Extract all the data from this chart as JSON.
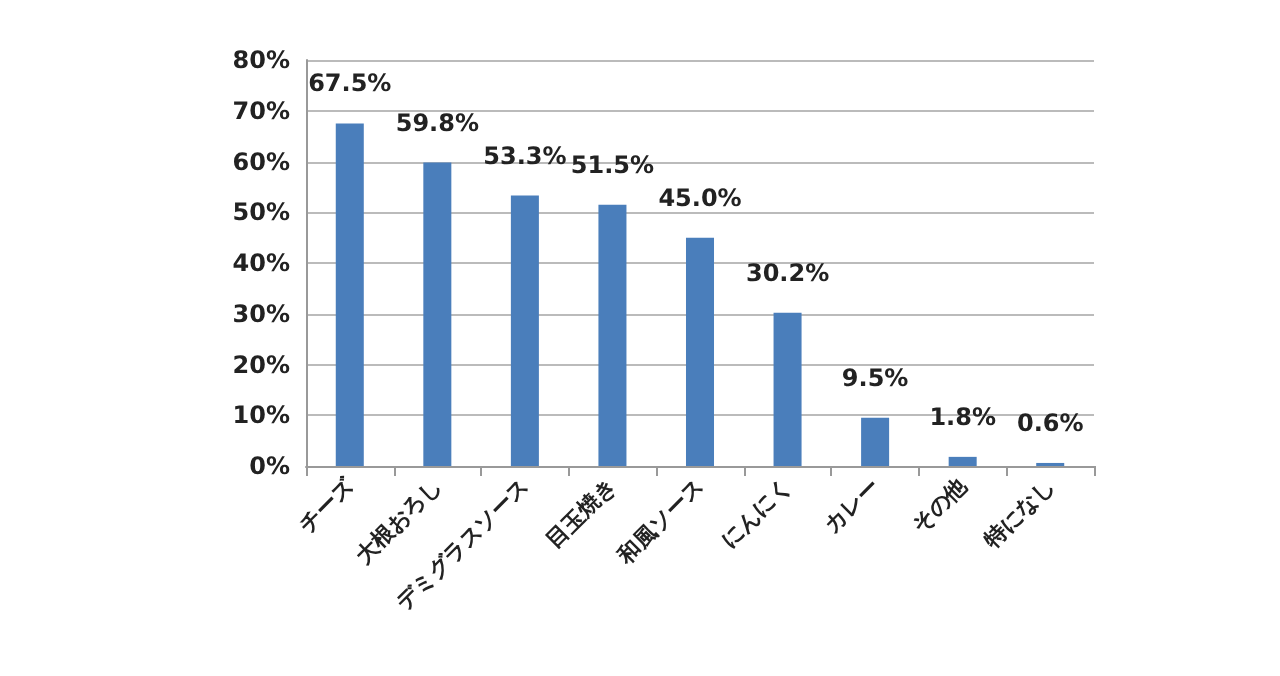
{
  "chart_data": {
    "type": "bar",
    "categories": [
      "チーズ",
      "大根おろし",
      "デミグラスソース",
      "目玉焼き",
      "和風ソース",
      "にんにく",
      "カレー",
      "その他",
      "特になし"
    ],
    "values": [
      67.5,
      59.8,
      53.3,
      51.5,
      45.0,
      30.2,
      9.5,
      1.8,
      0.6
    ],
    "value_labels": [
      "67.5%",
      "59.8%",
      "53.3%",
      "51.5%",
      "45.0%",
      "30.2%",
      "9.5%",
      "1.8%",
      "0.6%"
    ],
    "color": "#4a7ebb",
    "ylim": [
      0,
      80
    ],
    "yticks": [
      {
        "value": 0,
        "label": "0%"
      },
      {
        "value": 10,
        "label": "10%"
      },
      {
        "value": 20,
        "label": "20%"
      },
      {
        "value": 30,
        "label": "30%"
      },
      {
        "value": 40,
        "label": "40%"
      },
      {
        "value": 50,
        "label": "50%"
      },
      {
        "value": 60,
        "label": "60%"
      },
      {
        "value": 70,
        "label": "70%"
      },
      {
        "value": 80,
        "label": "80%"
      }
    ],
    "grid": "y"
  }
}
